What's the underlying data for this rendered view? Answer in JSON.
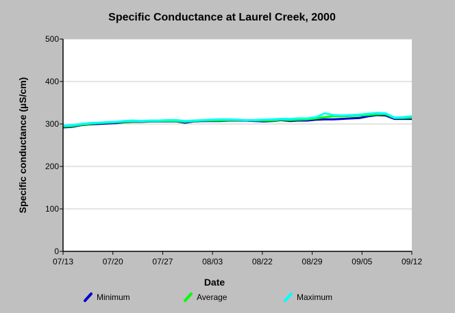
{
  "chart_data": {
    "type": "line",
    "title": "Specific Conductance at Laurel Creek, 2000",
    "xlabel": "Date",
    "ylabel": "Specific conductance (µS/cm)",
    "ylim": [
      0,
      500
    ],
    "yticks": [
      "0",
      "100",
      "200",
      "300",
      "400",
      "500"
    ],
    "xticks": [
      "07/13",
      "07/20",
      "07/27",
      "08/03",
      "08/22",
      "08/29",
      "09/05",
      "09/12"
    ],
    "grid": "horizontal",
    "legend_position": "bottom",
    "series": [
      {
        "name": "Minimum",
        "color": "#0000cc",
        "values": [
          292,
          293,
          297,
          299,
          300,
          301,
          302,
          304,
          305,
          305,
          306,
          306,
          306,
          306,
          303,
          306,
          307,
          307,
          307,
          308,
          308,
          308,
          307,
          306,
          307,
          309,
          307,
          308,
          308,
          310,
          311,
          311,
          312,
          313,
          314,
          318,
          321,
          320,
          312,
          312,
          312
        ]
      },
      {
        "name": "Average",
        "color": "#00ff00",
        "values": [
          294,
          295,
          298,
          300,
          302,
          303,
          304,
          305,
          306,
          306,
          307,
          307,
          307,
          307,
          305,
          307,
          308,
          308,
          308,
          309,
          309,
          309,
          308,
          308,
          308,
          310,
          309,
          310,
          311,
          313,
          316,
          318,
          318,
          319,
          320,
          321,
          323,
          323,
          314,
          314,
          315
        ]
      },
      {
        "name": "Maximum",
        "color": "#00ffff",
        "values": [
          296,
          297,
          300,
          302,
          303,
          304,
          305,
          307,
          308,
          307,
          308,
          308,
          309,
          309,
          307,
          308,
          309,
          310,
          311,
          311,
          310,
          309,
          309,
          310,
          311,
          312,
          312,
          313,
          313,
          316,
          325,
          321,
          320,
          321,
          322,
          324,
          326,
          325,
          315,
          316,
          318
        ]
      }
    ]
  }
}
